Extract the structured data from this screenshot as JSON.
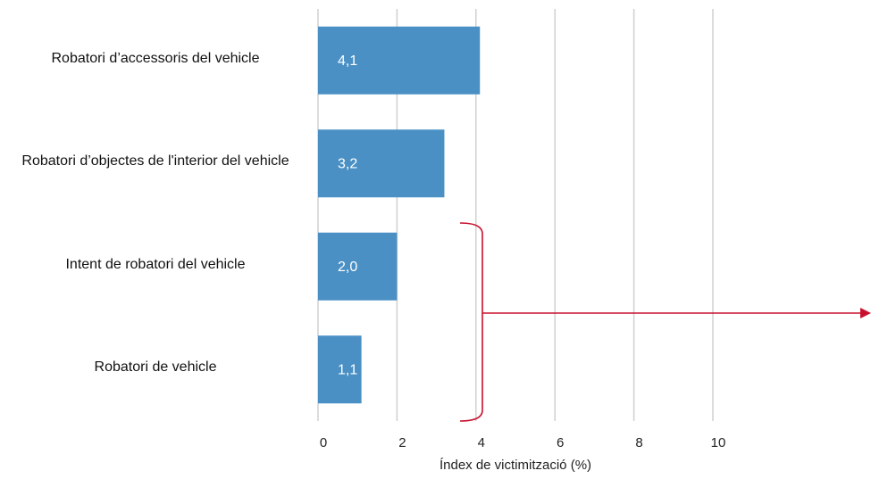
{
  "chart_data": {
    "type": "hbar",
    "categories": [
      "Robatori d’accessoris del vehicle",
      "Robatori d’objectes de l'interior del vehicle",
      "Intent de robatori del vehicle",
      "Robatori de vehicle"
    ],
    "values": [
      4.1,
      3.2,
      2.0,
      1.1
    ],
    "value_labels": [
      "4,1",
      "3,2",
      "2,0",
      "1,1"
    ],
    "color": "#4a90c4",
    "x_label": "Índex de victimització (%)",
    "xlim": [
      0,
      10
    ],
    "xticks": [
      0,
      2,
      4,
      6,
      8,
      10
    ],
    "grid": true
  }
}
